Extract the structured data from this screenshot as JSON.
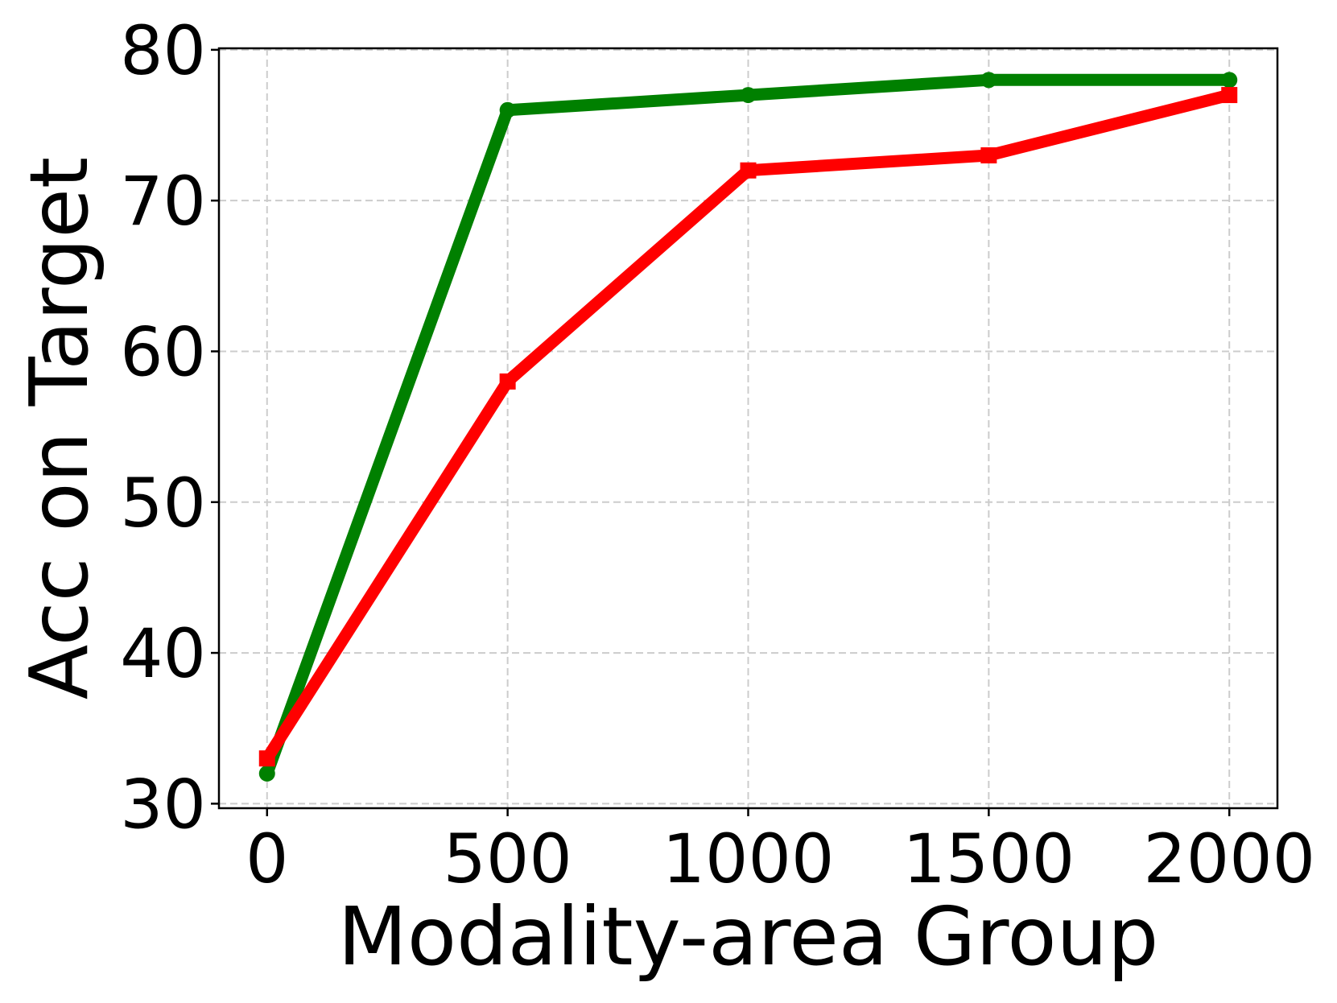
{
  "chart_data": {
    "type": "line",
    "title": "",
    "xlabel": "Modality-area Group",
    "ylabel": "Acc on Target",
    "x": [
      0,
      500,
      1000,
      1500,
      2000
    ],
    "xticks": [
      0,
      500,
      1000,
      1500,
      2000
    ],
    "xtick_labels": [
      "0",
      "500",
      "1000",
      "1500",
      "2000"
    ],
    "yticks": [
      30,
      40,
      50,
      60,
      70,
      80
    ],
    "ytick_labels": [
      "30",
      "40",
      "50",
      "60",
      "70",
      "80"
    ],
    "xlim": [
      -100,
      2100
    ],
    "ylim": [
      29.7,
      80.1
    ],
    "grid": true,
    "legend": null,
    "series": [
      {
        "color": "#008000",
        "marker": "circle",
        "values": [
          32,
          76,
          77,
          78,
          78
        ]
      },
      {
        "color": "#ff0000",
        "marker": "square",
        "values": [
          33,
          58,
          72,
          73,
          77
        ]
      }
    ]
  }
}
